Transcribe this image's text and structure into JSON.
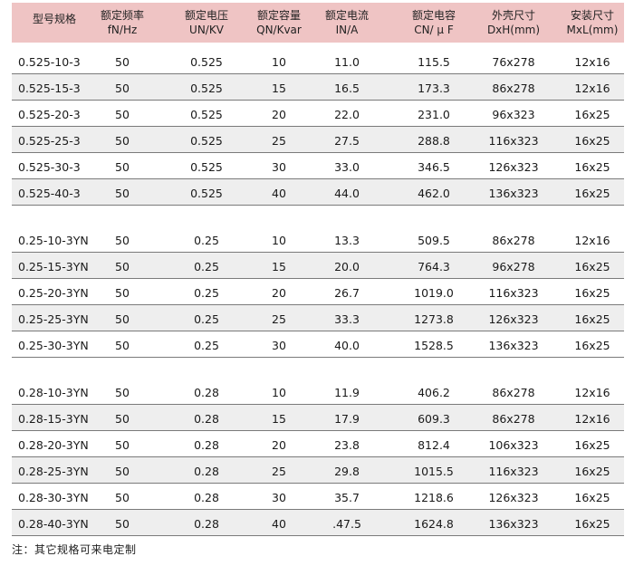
{
  "headers": [
    {
      "line1": "型号规格",
      "line2": ""
    },
    {
      "line1": "额定频率",
      "line2": "fN/Hz"
    },
    {
      "line1": "额定电压",
      "line2": "UN/KV"
    },
    {
      "line1": "额定容量",
      "line2": "QN/Kvar"
    },
    {
      "line1": "额定电流",
      "line2": "IN/A"
    },
    {
      "line1": "额定电容",
      "line2": "CN/ μ F"
    },
    {
      "line1": "外壳尺寸",
      "line2": "DxH(mm)"
    },
    {
      "line1": "安装尺寸",
      "line2": "MxL(mm)"
    }
  ],
  "groups": [
    {
      "rows": [
        [
          "0.525-10-3",
          "50",
          "0.525",
          "10",
          "11.0",
          "115.5",
          "76x278",
          "12x16"
        ],
        [
          "0.525-15-3",
          "50",
          "0.525",
          "15",
          "16.5",
          "173.3",
          "86x278",
          "12x16"
        ],
        [
          "0.525-20-3",
          "50",
          "0.525",
          "20",
          "22.0",
          "231.0",
          "96x323",
          "16x25"
        ],
        [
          "0.525-25-3",
          "50",
          "0.525",
          "25",
          "27.5",
          "288.8",
          "116x323",
          "16x25"
        ],
        [
          "0.525-30-3",
          "50",
          "0.525",
          "30",
          "33.0",
          "346.5",
          "126x323",
          "16x25"
        ],
        [
          "0.525-40-3",
          "50",
          "0.525",
          "40",
          "44.0",
          "462.0",
          "136x323",
          "16x25"
        ]
      ]
    },
    {
      "rows": [
        [
          "0.25-10-3YN",
          "50",
          "0.25",
          "10",
          "13.3",
          "509.5",
          "86x278",
          "12x16"
        ],
        [
          "0.25-15-3YN",
          "50",
          "0.25",
          "15",
          "20.0",
          "764.3",
          "96x278",
          "16x25"
        ],
        [
          "0.25-20-3YN",
          "50",
          "0.25",
          "20",
          "26.7",
          "1019.0",
          "116x323",
          "16x25"
        ],
        [
          "0.25-25-3YN",
          "50",
          "0.25",
          "25",
          "33.3",
          "1273.8",
          "126x323",
          "16x25"
        ],
        [
          "0.25-30-3YN",
          "50",
          "0.25",
          "30",
          "40.0",
          "1528.5",
          "136x323",
          "16x25"
        ]
      ]
    },
    {
      "rows": [
        [
          "0.28-10-3YN",
          "50",
          "0.28",
          "10",
          "11.9",
          "406.2",
          "86x278",
          "12x16"
        ],
        [
          "0.28-15-3YN",
          "50",
          "0.28",
          "15",
          "17.9",
          "609.3",
          "86x278",
          "12x16"
        ],
        [
          "0.28-20-3YN",
          "50",
          "0.28",
          "20",
          "23.8",
          "812.4",
          "106x323",
          "16x25"
        ],
        [
          "0.28-25-3YN",
          "50",
          "0.28",
          "25",
          "29.8",
          "1015.5",
          "116x323",
          "16x25"
        ],
        [
          "0.28-30-3YN",
          "50",
          "0.28",
          "30",
          "35.7",
          "1218.6",
          "126x323",
          "16x25"
        ],
        [
          "0.28-40-3YN",
          "50",
          "0.28",
          "40",
          ".47.5",
          "1624.8",
          "136x323",
          "16x25"
        ]
      ]
    }
  ],
  "note": "注：其它规格可来电定制"
}
